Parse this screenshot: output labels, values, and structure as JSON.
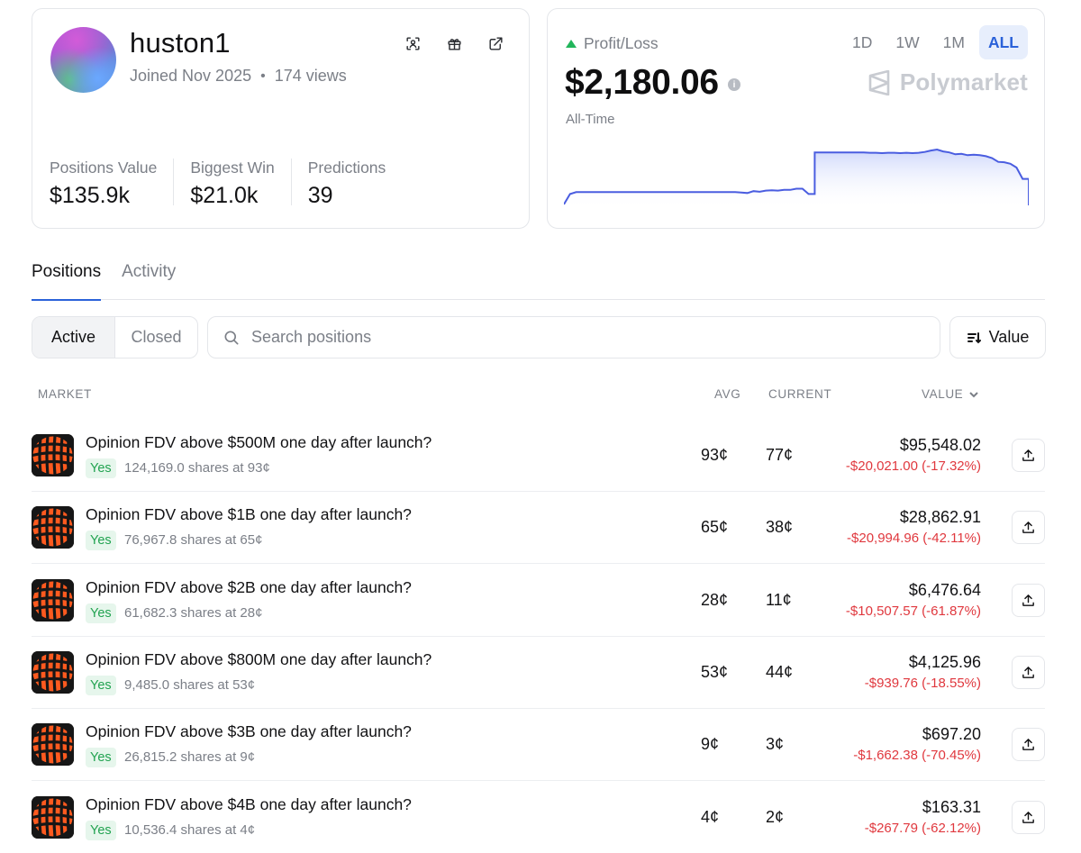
{
  "profile": {
    "username": "huston1",
    "joined": "Joined Nov 2025",
    "separator": "•",
    "views": "174 views",
    "stats": [
      {
        "label": "Positions Value",
        "value": "$135.9k"
      },
      {
        "label": "Biggest Win",
        "value": "$21.0k"
      },
      {
        "label": "Predictions",
        "value": "39"
      }
    ]
  },
  "pnl": {
    "label": "Profit/Loss",
    "value": "$2,180.06",
    "info_icon": "i",
    "period": "All-Time",
    "ranges": [
      "1D",
      "1W",
      "1M",
      "ALL"
    ],
    "active_range": "ALL",
    "brand": "Polymarket",
    "accent_color": "#2b62d9",
    "up_color": "#22b55b"
  },
  "chart_data": {
    "type": "area",
    "title": "",
    "xlabel": "",
    "ylabel": "",
    "grid": false,
    "line_color": "#4a5de0",
    "series": [
      {
        "values": [
          -95,
          -40,
          -30,
          -30,
          -30,
          -30,
          -30,
          -30,
          -30,
          -30,
          -30,
          -30,
          -30,
          -30,
          -30,
          -30,
          -30,
          -30,
          -30,
          -30,
          -30,
          -30,
          -30,
          -30,
          -30,
          -30,
          -30,
          -30,
          -30,
          -32,
          -35,
          -25,
          -28,
          -22,
          -20,
          -22,
          -18,
          -18,
          -12,
          -12,
          -40,
          180,
          180,
          180,
          180,
          180,
          180,
          180,
          180,
          180,
          178,
          178,
          176,
          178,
          178,
          176,
          178,
          176,
          178,
          182,
          190,
          195,
          185,
          180,
          170,
          172,
          165,
          168,
          165,
          160,
          150,
          130,
          128,
          120,
          100,
          40,
          -100
        ]
      }
    ]
  },
  "tabs": [
    "Positions",
    "Activity"
  ],
  "active_tab": "Positions",
  "filters": {
    "segments": [
      "Active",
      "Closed"
    ],
    "active_segment": "Active",
    "search_placeholder": "Search positions",
    "sort_label": "Value"
  },
  "table": {
    "headers": {
      "market": "MARKET",
      "avg": "AVG",
      "current": "CURRENT",
      "value": "VALUE"
    },
    "rows": [
      {
        "title": "Opinion FDV above $500M one day after launch?",
        "outcome": "Yes",
        "shares": "124,169.0 shares at 93¢",
        "avg": "93¢",
        "current": "77¢",
        "value": "$95,548.02",
        "change": "-$20,021.00 (-17.32%)"
      },
      {
        "title": "Opinion FDV above $1B one day after launch?",
        "outcome": "Yes",
        "shares": "76,967.8 shares at 65¢",
        "avg": "65¢",
        "current": "38¢",
        "value": "$28,862.91",
        "change": "-$20,994.96 (-42.11%)"
      },
      {
        "title": "Opinion FDV above $2B one day after launch?",
        "outcome": "Yes",
        "shares": "61,682.3 shares at 28¢",
        "avg": "28¢",
        "current": "11¢",
        "value": "$6,476.64",
        "change": "-$10,507.57 (-61.87%)"
      },
      {
        "title": "Opinion FDV above $800M one day after launch?",
        "outcome": "Yes",
        "shares": "9,485.0 shares at 53¢",
        "avg": "53¢",
        "current": "44¢",
        "value": "$4,125.96",
        "change": "-$939.76 (-18.55%)"
      },
      {
        "title": "Opinion FDV above $3B one day after launch?",
        "outcome": "Yes",
        "shares": "26,815.2 shares at 9¢",
        "avg": "9¢",
        "current": "3¢",
        "value": "$697.20",
        "change": "-$1,662.38 (-70.45%)"
      },
      {
        "title": "Opinion FDV above $4B one day after launch?",
        "outcome": "Yes",
        "shares": "10,536.4 shares at 4¢",
        "avg": "4¢",
        "current": "2¢",
        "value": "$163.31",
        "change": "-$267.79 (-62.12%)"
      }
    ]
  },
  "icons": {
    "profile_actions": [
      "scan-face-icon",
      "gift-icon",
      "external-link-icon"
    ],
    "search": "search-icon",
    "sort": "sort-icon",
    "value_sort": "chevron-down-icon",
    "row_action": "share-icon",
    "market_logo": "opinion-logo-icon"
  }
}
